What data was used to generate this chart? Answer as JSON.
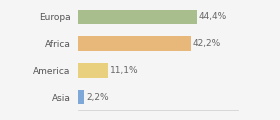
{
  "categories": [
    "Europa",
    "Africa",
    "America",
    "Asia"
  ],
  "values": [
    44.4,
    42.2,
    11.1,
    2.2
  ],
  "labels": [
    "44,4%",
    "42,2%",
    "11,1%",
    "2,2%"
  ],
  "bar_colors": [
    "#a8be8c",
    "#e8b87a",
    "#e8d07e",
    "#7ea8d8"
  ],
  "background_color": "#f5f5f5",
  "xlim": [
    0,
    60
  ],
  "bar_height": 0.55,
  "label_fontsize": 6.5,
  "tick_fontsize": 6.5
}
